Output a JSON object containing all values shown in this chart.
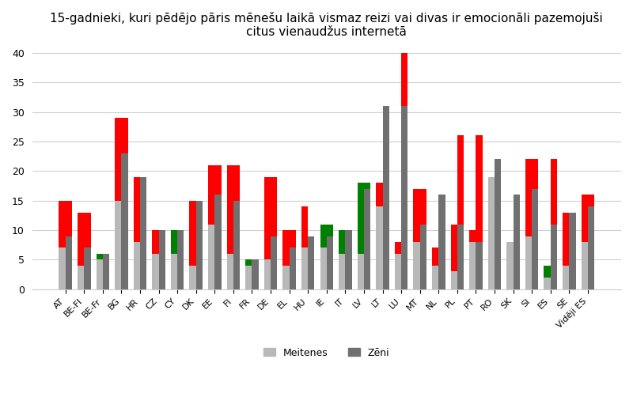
{
  "title": "15-gadnieki, kuri pēdējo pāris mēnešu laikā vismaz reizi vai divas ir emocionāli pazemojuši\ncitus vienaudžus internetā",
  "categories": [
    "AT",
    "BE-Fl",
    "BE-Fr",
    "BG",
    "HR",
    "CZ",
    "CY",
    "DK",
    "EE",
    "FI",
    "FR",
    "DE",
    "EL",
    "HU",
    "IE",
    "IT",
    "LV",
    "LT",
    "LU",
    "MT",
    "NL",
    "PL",
    "PT",
    "RO",
    "SK",
    "SI",
    "ES",
    "SE",
    "Vidēji ES"
  ],
  "meitenes_val": [
    7,
    4,
    5,
    15,
    8,
    6,
    6,
    4,
    11,
    6,
    4,
    5,
    4,
    7,
    7,
    6,
    6,
    14,
    6,
    8,
    4,
    3,
    8,
    19,
    8,
    9,
    2,
    4,
    8
  ],
  "meitenes_highlight": [
    15,
    13,
    6,
    29,
    19,
    10,
    10,
    15,
    21,
    21,
    5,
    19,
    10,
    14,
    11,
    10,
    18,
    18,
    8,
    17,
    7,
    11,
    10,
    19,
    8,
    22,
    4,
    13,
    16
  ],
  "meitenes_highlight_color": [
    "red",
    "red",
    "green",
    "red",
    "red",
    "red",
    "green",
    "red",
    "red",
    "red",
    "green",
    "red",
    "red",
    "red",
    "green",
    "green",
    "green",
    "red",
    "red",
    "red",
    "red",
    "red",
    "red",
    "green",
    "green",
    "red",
    "green",
    "red",
    "red"
  ],
  "zeni_val": [
    9,
    7,
    6,
    23,
    19,
    10,
    10,
    15,
    16,
    15,
    5,
    9,
    7,
    9,
    9,
    10,
    17,
    31,
    31,
    11,
    16,
    11,
    8,
    22,
    16,
    17,
    11,
    13,
    14
  ],
  "zeni_highlight": [
    15,
    13,
    6,
    29,
    19,
    10,
    10,
    15,
    21,
    21,
    5,
    19,
    10,
    9,
    11,
    10,
    18,
    31,
    40,
    17,
    16,
    26,
    26,
    22,
    16,
    22,
    22,
    13,
    16
  ],
  "zeni_highlight_color": [
    "red",
    "red",
    "green",
    "red",
    "green",
    "green",
    "green",
    "green",
    "red",
    "red",
    "green",
    "red",
    "red",
    "green",
    "green",
    "green",
    "green",
    "green",
    "red",
    "red",
    "green",
    "red",
    "red",
    "green",
    "green",
    "red",
    "red",
    "green",
    "red"
  ],
  "legend_meitenes": "Meitenes",
  "legend_zeni": "Zēni",
  "ylim": [
    0,
    41
  ],
  "yticks": [
    0,
    5,
    10,
    15,
    20,
    25,
    30,
    35,
    40
  ],
  "bar_width": 0.35,
  "meitenes_base_color": "#b8b8b8",
  "zeni_base_color": "#707070",
  "background_color": "#ffffff",
  "plot_bg_color": "#ffffff",
  "grid_color": "#d0d0d0",
  "title_fontsize": 11
}
